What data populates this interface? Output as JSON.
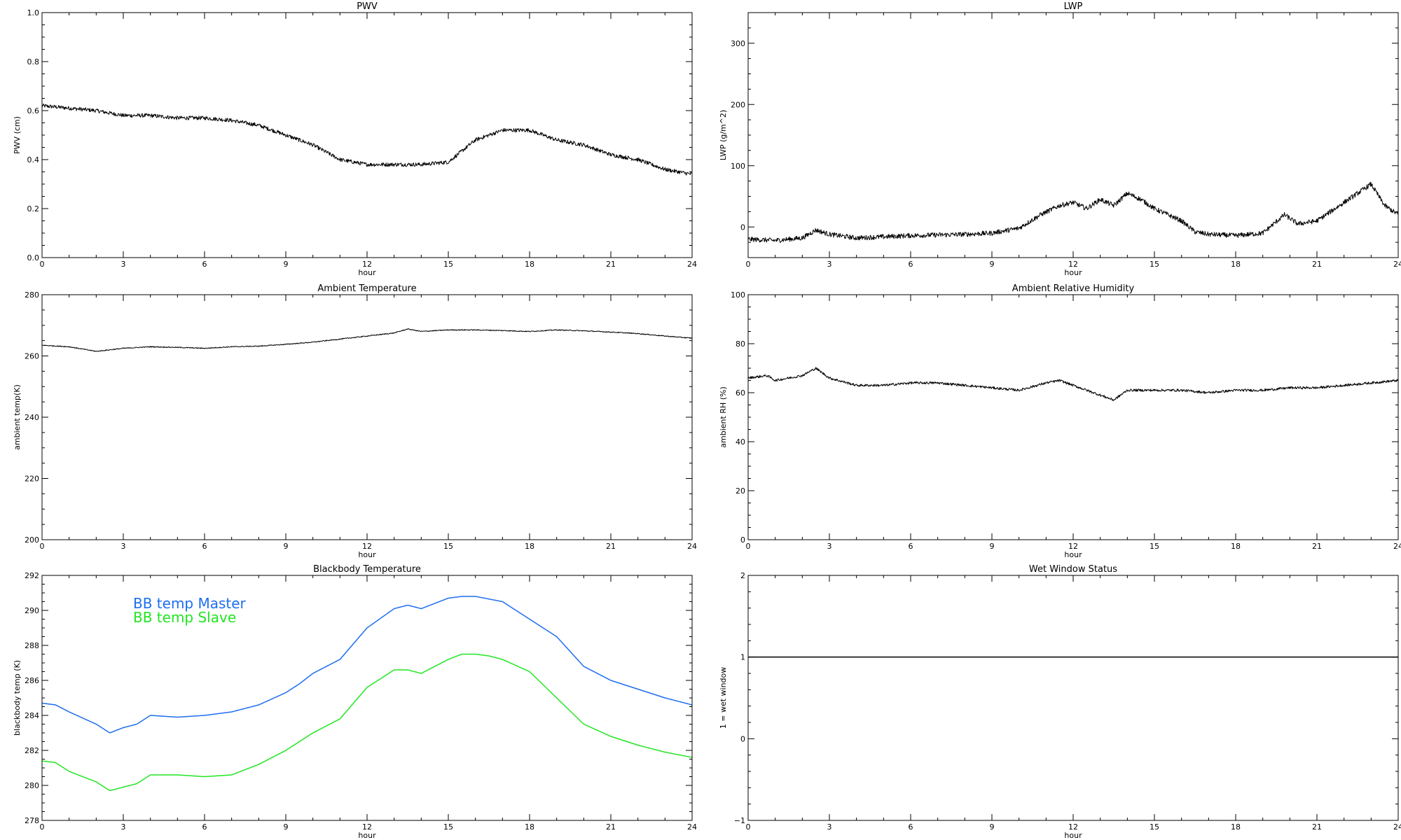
{
  "chart_data": [
    {
      "type": "line",
      "title": "PWV",
      "xlabel": "hour",
      "ylabel": "PWV (cm)",
      "xlim": [
        0,
        24
      ],
      "ylim": [
        0,
        1
      ],
      "xticks": [
        0,
        3,
        6,
        9,
        12,
        15,
        18,
        21,
        24
      ],
      "xtick_labels": [
        "0",
        "3",
        "6",
        "9",
        "12",
        "15",
        "18",
        "21",
        "24"
      ],
      "yticks": [
        0,
        0.2,
        0.4,
        0.6,
        0.8,
        1.0
      ],
      "ytick_labels": [
        "0.0",
        "0.2",
        "0.4",
        "0.6",
        "0.8",
        "1.0"
      ],
      "grid": false,
      "series": [
        {
          "color": "#000000",
          "noise": 0.008,
          "x": [
            0,
            1,
            2,
            3,
            4,
            5,
            6,
            7,
            8,
            9,
            10,
            11,
            12,
            13,
            14,
            15,
            16,
            17,
            18,
            19,
            20,
            21,
            22,
            23,
            24
          ],
          "y": [
            0.62,
            0.61,
            0.6,
            0.58,
            0.58,
            0.57,
            0.57,
            0.56,
            0.54,
            0.5,
            0.46,
            0.4,
            0.38,
            0.38,
            0.38,
            0.39,
            0.48,
            0.52,
            0.52,
            0.48,
            0.46,
            0.42,
            0.4,
            0.36,
            0.34
          ]
        }
      ]
    },
    {
      "type": "line",
      "title": "LWP",
      "xlabel": "hour",
      "ylabel": "LWP (g/m^2)",
      "xlim": [
        0,
        24
      ],
      "ylim": [
        -50,
        350
      ],
      "xticks": [
        0,
        3,
        6,
        9,
        12,
        15,
        18,
        21,
        24
      ],
      "xtick_labels": [
        "0",
        "3",
        "6",
        "9",
        "12",
        "15",
        "18",
        "21",
        "24"
      ],
      "yticks": [
        0,
        100,
        200,
        300
      ],
      "ytick_labels": [
        "0",
        "100",
        "200",
        "300"
      ],
      "grid": false,
      "series": [
        {
          "color": "#000000",
          "noise": 4,
          "x": [
            0,
            1,
            2,
            2.5,
            3,
            4,
            5,
            6,
            7,
            8,
            9,
            10,
            10.8,
            11.5,
            12,
            12.5,
            13,
            13.5,
            14,
            14.5,
            15,
            15.5,
            16,
            16.5,
            17,
            18,
            19,
            19.8,
            20.3,
            21,
            22,
            22.5,
            23,
            23.5,
            24
          ],
          "y": [
            -20,
            -22,
            -18,
            -5,
            -12,
            -18,
            -16,
            -14,
            -13,
            -12,
            -10,
            -2,
            20,
            35,
            40,
            30,
            45,
            35,
            55,
            45,
            30,
            20,
            10,
            -8,
            -12,
            -14,
            -10,
            20,
            5,
            10,
            40,
            55,
            70,
            35,
            20
          ]
        }
      ]
    },
    {
      "type": "line",
      "title": "Ambient Temperature",
      "xlabel": "hour",
      "ylabel": "ambient temp(K)",
      "xlim": [
        0,
        24
      ],
      "ylim": [
        200,
        280
      ],
      "xticks": [
        0,
        3,
        6,
        9,
        12,
        15,
        18,
        21,
        24
      ],
      "xtick_labels": [
        "0",
        "3",
        "6",
        "9",
        "12",
        "15",
        "18",
        "21",
        "24"
      ],
      "yticks": [
        200,
        220,
        240,
        260,
        280
      ],
      "ytick_labels": [
        "200",
        "220",
        "240",
        "260",
        "280"
      ],
      "grid": false,
      "series": [
        {
          "color": "#000000",
          "noise": 0.15,
          "x": [
            0,
            1,
            2,
            3,
            4,
            5,
            6,
            7,
            8,
            9,
            10,
            11,
            12,
            13,
            13.5,
            14,
            15,
            16,
            17,
            18,
            19,
            20,
            21,
            22,
            23,
            24
          ],
          "y": [
            263.5,
            263,
            261.5,
            262.5,
            263,
            262.8,
            262.5,
            263,
            263.2,
            263.8,
            264.5,
            265.5,
            266.5,
            267.5,
            268.8,
            268,
            268.5,
            268.5,
            268.3,
            268,
            268.5,
            268.2,
            267.8,
            267.3,
            266.5,
            265.8
          ]
        }
      ]
    },
    {
      "type": "line",
      "title": "Ambient Relative Humidity",
      "xlabel": "hour",
      "ylabel": "ambient RH (%)",
      "xlim": [
        0,
        24
      ],
      "ylim": [
        0,
        100
      ],
      "xticks": [
        0,
        3,
        6,
        9,
        12,
        15,
        18,
        21,
        24
      ],
      "xtick_labels": [
        "0",
        "3",
        "6",
        "9",
        "12",
        "15",
        "18",
        "21",
        "24"
      ],
      "yticks": [
        0,
        20,
        40,
        60,
        80,
        100
      ],
      "ytick_labels": [
        "0",
        "20",
        "40",
        "60",
        "80",
        "100"
      ],
      "grid": false,
      "series": [
        {
          "color": "#000000",
          "noise": 0.5,
          "x": [
            0,
            0.7,
            1,
            2,
            2.5,
            3,
            4,
            5,
            6,
            7,
            8,
            9,
            10,
            11,
            11.5,
            12,
            13,
            13.5,
            14,
            15,
            16,
            17,
            18,
            19,
            20,
            21,
            22,
            23,
            24
          ],
          "y": [
            66,
            67,
            65,
            67,
            70,
            66,
            63,
            63,
            64,
            64,
            63,
            62,
            61,
            64,
            65,
            63,
            59,
            57,
            61,
            61,
            61,
            60,
            61,
            61,
            62,
            62,
            63,
            64,
            65
          ]
        }
      ]
    },
    {
      "type": "line",
      "title": "Blackbody Temperature",
      "xlabel": "hour",
      "ylabel": "blackbody temp (K)",
      "xlim": [
        0,
        24
      ],
      "ylim": [
        278,
        292
      ],
      "xticks": [
        0,
        3,
        6,
        9,
        12,
        15,
        18,
        21,
        24
      ],
      "xtick_labels": [
        "0",
        "3",
        "6",
        "9",
        "12",
        "15",
        "18",
        "21",
        "24"
      ],
      "yticks": [
        278,
        280,
        282,
        284,
        286,
        288,
        290,
        292
      ],
      "ytick_labels": [
        "278",
        "280",
        "282",
        "284",
        "286",
        "288",
        "290",
        "292"
      ],
      "grid": false,
      "legend": "top-left",
      "series": [
        {
          "name": "BB temp Master",
          "color": "#1e6ef0",
          "noise": 0,
          "x": [
            0,
            0.5,
            1,
            2,
            2.5,
            3,
            3.5,
            4,
            5,
            6,
            7,
            8,
            9,
            9.5,
            10,
            11,
            12,
            13,
            13.5,
            14,
            15,
            15.5,
            16,
            17,
            18,
            19,
            20,
            21,
            22,
            23,
            24
          ],
          "y": [
            284.7,
            284.6,
            284.2,
            283.5,
            283,
            283.3,
            283.5,
            284,
            283.9,
            284,
            284.2,
            284.6,
            285.3,
            285.8,
            286.4,
            287.2,
            289,
            290.1,
            290.3,
            290.1,
            290.7,
            290.8,
            290.8,
            290.5,
            289.5,
            288.5,
            286.8,
            286,
            285.5,
            285,
            284.6
          ]
        },
        {
          "name": "BB temp Slave",
          "color": "#22e622",
          "noise": 0,
          "x": [
            0,
            0.5,
            1,
            2,
            2.5,
            3,
            3.5,
            4,
            5,
            6,
            7,
            8,
            9,
            9.5,
            10,
            11,
            12,
            13,
            13.5,
            14,
            15,
            15.5,
            16,
            16.5,
            17,
            18,
            19,
            20,
            21,
            22,
            23,
            24
          ],
          "y": [
            281.4,
            281.3,
            280.8,
            280.2,
            279.7,
            279.9,
            280.1,
            280.6,
            280.6,
            280.5,
            280.6,
            281.2,
            282,
            282.5,
            283,
            283.8,
            285.6,
            286.6,
            286.6,
            286.4,
            287.2,
            287.5,
            287.5,
            287.4,
            287.2,
            286.5,
            285,
            283.5,
            282.8,
            282.3,
            281.9,
            281.6
          ]
        }
      ]
    },
    {
      "type": "line",
      "title": "Wet Window Status",
      "xlabel": "hour",
      "ylabel": "1 = wet window",
      "xlim": [
        0,
        24
      ],
      "ylim": [
        -1,
        2
      ],
      "xticks": [
        0,
        3,
        6,
        9,
        12,
        15,
        18,
        21,
        24
      ],
      "xtick_labels": [
        "0",
        "3",
        "6",
        "9",
        "12",
        "15",
        "18",
        "21",
        "24"
      ],
      "yticks": [
        -1,
        0,
        1,
        2
      ],
      "ytick_labels": [
        "−1",
        "0",
        "1",
        "2"
      ],
      "grid": false,
      "series": [
        {
          "color": "#000000",
          "noise": 0,
          "x": [
            0,
            24
          ],
          "y": [
            1,
            1
          ]
        }
      ]
    }
  ]
}
